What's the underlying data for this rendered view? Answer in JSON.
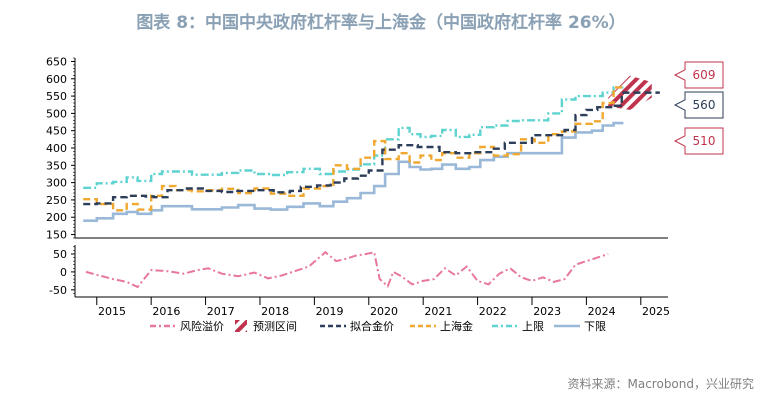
{
  "title": "图表 8：中国中央政府杠杆率与上海金（中国政府杠杆率 26%）",
  "source": "资料来源：Macrobond，兴业研究",
  "colors": {
    "premium": "#e8789a",
    "forecast": "#c0334d",
    "fit": "#2d3e5a",
    "shanghai": "#f0a830",
    "upper": "#5fd3d0",
    "lower": "#9ab8d8",
    "callout_border": "#c0334d",
    "callout_mid": "#2d3e5a"
  },
  "chart_data": [
    {
      "type": "line",
      "title": "",
      "x_range": [
        2014.6,
        2025.5
      ],
      "ylim": [
        140,
        660
      ],
      "yticks": [
        150,
        200,
        250,
        300,
        350,
        400,
        450,
        500,
        550,
        600,
        650
      ],
      "xticks": [
        "2015",
        "2016",
        "2017",
        "2018",
        "2019",
        "2020",
        "2021",
        "2022",
        "2023",
        "2024",
        "2025"
      ],
      "series": [
        {
          "name": "拟合金价",
          "style": "dash",
          "color_key": "fit",
          "x": [
            2014.75,
            2015.0,
            2015.3,
            2015.55,
            2015.9,
            2016.05,
            2016.3,
            2016.6,
            2016.95,
            2017.3,
            2017.55,
            2017.9,
            2018.25,
            2018.55,
            2018.75,
            2019.05,
            2019.3,
            2019.55,
            2019.8,
            2020.0,
            2020.25,
            2020.55,
            2020.9,
            2021.3,
            2021.6,
            2021.9,
            2022.3,
            2022.5,
            2022.75,
            2023.0,
            2023.3,
            2023.6,
            2023.8,
            2024.0,
            2024.2,
            2024.5
          ],
          "y": [
            238,
            240,
            258,
            262,
            260,
            258,
            278,
            283,
            276,
            273,
            276,
            278,
            272,
            276,
            288,
            292,
            300,
            312,
            320,
            335,
            395,
            408,
            403,
            388,
            385,
            388,
            398,
            415,
            415,
            437,
            437,
            452,
            495,
            510,
            518,
            522
          ]
        },
        {
          "name": "上海金",
          "style": "dash",
          "color_key": "shanghai",
          "x": [
            2014.75,
            2015.0,
            2015.3,
            2015.55,
            2015.75,
            2016.0,
            2016.2,
            2016.45,
            2016.75,
            2017.0,
            2017.3,
            2017.6,
            2017.9,
            2018.2,
            2018.5,
            2018.8,
            2019.1,
            2019.35,
            2019.6,
            2019.85,
            2020.1,
            2020.3,
            2020.55,
            2020.75,
            2020.95,
            2021.15,
            2021.35,
            2021.6,
            2021.85,
            2022.05,
            2022.3,
            2022.55,
            2022.8,
            2023.05,
            2023.3,
            2023.55,
            2023.8,
            2024.1,
            2024.3,
            2024.5
          ],
          "y": [
            252,
            238,
            220,
            238,
            222,
            262,
            290,
            278,
            275,
            278,
            282,
            270,
            283,
            268,
            262,
            283,
            290,
            350,
            340,
            372,
            420,
            368,
            385,
            358,
            378,
            365,
            385,
            372,
            385,
            403,
            378,
            382,
            425,
            415,
            440,
            448,
            470,
            477,
            530,
            575
          ]
        },
        {
          "name": "上限",
          "style": "dashdot",
          "color_key": "upper",
          "x": [
            2014.75,
            2015.0,
            2015.3,
            2015.55,
            2015.75,
            2016.0,
            2016.2,
            2016.45,
            2016.75,
            2017.0,
            2017.3,
            2017.6,
            2017.9,
            2018.2,
            2018.5,
            2018.8,
            2019.1,
            2019.35,
            2019.6,
            2019.85,
            2020.1,
            2020.3,
            2020.55,
            2020.75,
            2020.95,
            2021.15,
            2021.35,
            2021.6,
            2021.85,
            2022.05,
            2022.3,
            2022.55,
            2022.8,
            2023.05,
            2023.3,
            2023.55,
            2023.8,
            2024.1,
            2024.3,
            2024.5
          ],
          "y": [
            285,
            298,
            302,
            315,
            305,
            325,
            332,
            332,
            323,
            323,
            328,
            335,
            325,
            322,
            330,
            340,
            325,
            332,
            338,
            353,
            378,
            425,
            458,
            440,
            432,
            435,
            452,
            432,
            438,
            460,
            465,
            478,
            480,
            480,
            500,
            540,
            550,
            550,
            560,
            575
          ]
        },
        {
          "name": "下限",
          "style": "solid",
          "color_key": "lower",
          "x": [
            2014.75,
            2015.0,
            2015.3,
            2015.55,
            2015.75,
            2016.0,
            2016.2,
            2016.45,
            2016.75,
            2017.0,
            2017.3,
            2017.6,
            2017.9,
            2018.2,
            2018.5,
            2018.8,
            2019.1,
            2019.35,
            2019.6,
            2019.85,
            2020.1,
            2020.3,
            2020.55,
            2020.75,
            2020.95,
            2021.15,
            2021.35,
            2021.6,
            2021.85,
            2022.05,
            2022.3,
            2022.55,
            2022.8,
            2023.05,
            2023.3,
            2023.55,
            2023.8,
            2024.1,
            2024.3,
            2024.5
          ],
          "y": [
            190,
            197,
            210,
            215,
            210,
            220,
            232,
            232,
            223,
            223,
            228,
            235,
            225,
            222,
            230,
            240,
            232,
            245,
            255,
            270,
            290,
            325,
            360,
            345,
            338,
            340,
            352,
            340,
            345,
            365,
            375,
            385,
            385,
            385,
            385,
            430,
            445,
            450,
            465,
            472
          ]
        },
        {
          "name": "预测区间",
          "style": "hatch",
          "color_key": "forecast",
          "x": [
            2024.4,
            2024.65
          ],
          "y_low": [
            510,
            510
          ],
          "y_high": [
            609,
            609
          ]
        }
      ],
      "callouts": [
        {
          "label": "609",
          "value": 609,
          "color_key": "callout_border"
        },
        {
          "label": "560",
          "value": 560,
          "color_key": "callout_mid"
        },
        {
          "label": "510",
          "value": 510,
          "color_key": "callout_border"
        }
      ]
    },
    {
      "type": "line",
      "title": "",
      "ylim": [
        -70,
        75
      ],
      "yticks": [
        -50,
        0,
        50
      ],
      "series": [
        {
          "name": "风险溢价",
          "style": "dashdot",
          "color_key": "premium",
          "x": [
            2014.8,
            2015.0,
            2015.3,
            2015.55,
            2015.75,
            2016.0,
            2016.3,
            2016.6,
            2016.85,
            2017.05,
            2017.3,
            2017.6,
            2017.9,
            2018.15,
            2018.4,
            2018.7,
            2018.9,
            2019.2,
            2019.4,
            2019.55,
            2019.75,
            2019.95,
            2020.1,
            2020.2,
            2020.35,
            2020.45,
            2020.6,
            2020.8,
            2021.0,
            2021.2,
            2021.4,
            2021.6,
            2021.8,
            2022.0,
            2022.2,
            2022.4,
            2022.6,
            2022.8,
            2023.0,
            2023.2,
            2023.4,
            2023.6,
            2023.8,
            2024.0,
            2024.2,
            2024.4
          ],
          "y": [
            0,
            -8,
            -20,
            -28,
            -42,
            5,
            2,
            -5,
            5,
            10,
            -5,
            -12,
            -2,
            -18,
            -10,
            5,
            15,
            55,
            30,
            35,
            45,
            50,
            55,
            -20,
            -40,
            0,
            -12,
            -35,
            -25,
            -20,
            10,
            -10,
            15,
            -25,
            -35,
            -5,
            10,
            -15,
            -25,
            -15,
            -28,
            -20,
            20,
            30,
            40,
            50
          ]
        }
      ]
    }
  ],
  "legend": [
    {
      "label": "风险溢价",
      "style": "dashdot",
      "color_key": "premium"
    },
    {
      "label": "预测区间",
      "style": "hatch",
      "color_key": "forecast"
    },
    {
      "label": "拟合金价",
      "style": "dash",
      "color_key": "fit"
    },
    {
      "label": "上海金",
      "style": "dash",
      "color_key": "shanghai"
    },
    {
      "label": "上限",
      "style": "dashdot",
      "color_key": "upper"
    },
    {
      "label": "下限",
      "style": "solid",
      "color_key": "lower"
    }
  ]
}
